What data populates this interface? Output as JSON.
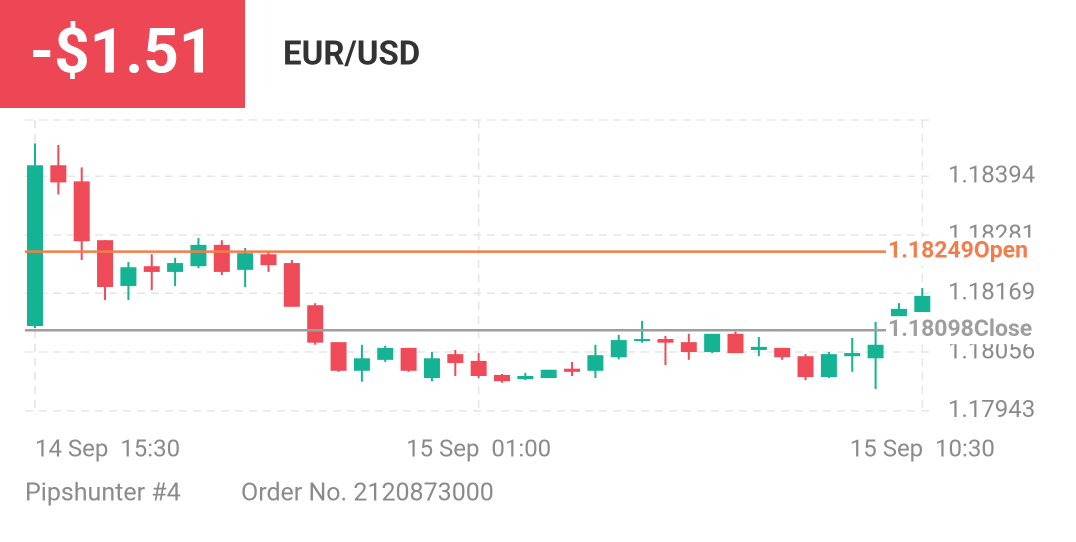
{
  "header": {
    "pnl": "-$1.51",
    "symbol": "EUR/USD"
  },
  "chart_data": {
    "type": "candlestick",
    "categories": [
      "14 Sep  15:30",
      null,
      null,
      null,
      null,
      null,
      null,
      null,
      null,
      null,
      null,
      null,
      null,
      null,
      null,
      null,
      null,
      null,
      null,
      "15 Sep  01:00",
      null,
      null,
      null,
      null,
      null,
      null,
      null,
      null,
      null,
      null,
      null,
      null,
      null,
      null,
      null,
      null,
      null,
      null,
      "15 Sep  10:30"
    ],
    "open": [
      1.18106,
      1.18415,
      1.18384,
      1.18271,
      1.18183,
      1.18221,
      1.1821,
      1.18221,
      1.18262,
      1.18214,
      1.18244,
      1.18227,
      1.18146,
      1.18075,
      1.1802,
      1.18041,
      1.18064,
      1.18006,
      1.18052,
      1.18039,
      1.18012,
      1.18004,
      1.18006,
      1.18024,
      1.1802,
      1.18046,
      1.18077,
      1.18081,
      1.18075,
      1.18056,
      1.18091,
      1.1806,
      1.18064,
      1.18048,
      1.18008,
      1.18048,
      1.18044,
      1.18123,
      1.18133
    ],
    "high": [
      1.18457,
      1.18454,
      1.18411,
      1.18271,
      1.18229,
      1.18244,
      1.18237,
      1.18275,
      1.18271,
      1.18256,
      1.18248,
      1.18233,
      1.1815,
      1.18075,
      1.1807,
      1.18068,
      1.18064,
      1.18056,
      1.1806,
      1.18054,
      1.18014,
      1.18016,
      1.18022,
      1.18037,
      1.1807,
      1.18089,
      1.18116,
      1.18087,
      1.18091,
      1.18091,
      1.18095,
      1.18085,
      1.18064,
      1.18052,
      1.18056,
      1.18083,
      1.18114,
      1.1815,
      1.18179
    ],
    "low": [
      1.18102,
      1.18359,
      1.18233,
      1.18156,
      1.18156,
      1.18175,
      1.18183,
      1.18217,
      1.18204,
      1.18181,
      1.1821,
      1.18143,
      1.1807,
      1.18018,
      1.17999,
      1.18037,
      1.18018,
      1.18,
      1.1801,
      1.18006,
      1.17997,
      1.18002,
      1.18006,
      1.1801,
      1.18006,
      1.18042,
      1.18074,
      1.18031,
      1.18041,
      1.18054,
      1.18054,
      1.18048,
      1.18041,
      1.18002,
      1.18006,
      1.18018,
      1.17985,
      1.18121,
      1.18133
    ],
    "close": [
      1.18415,
      1.18382,
      1.18269,
      1.18181,
      1.18219,
      1.1821,
      1.18227,
      1.18262,
      1.1821,
      1.18246,
      1.18223,
      1.18143,
      1.18074,
      1.1802,
      1.18044,
      1.18064,
      1.1802,
      1.18044,
      1.18035,
      1.1801,
      1.18,
      1.1801,
      1.18022,
      1.18018,
      1.1805,
      1.18079,
      1.18081,
      1.18074,
      1.18056,
      1.18091,
      1.18054,
      1.18066,
      1.18046,
      1.18008,
      1.18052,
      1.18054,
      1.1807,
      1.18139,
      1.18164
    ],
    "up_color": "#13b393",
    "down_color": "#ee4a58",
    "ylim": [
      1.17935,
      1.18502
    ],
    "yticks": [
      1.18394,
      1.18281,
      1.18169,
      1.18056,
      1.17943
    ],
    "grid": true,
    "lines": [
      {
        "name": "Open",
        "value": 1.18249,
        "color": "#f47c4a"
      },
      {
        "name": "Close",
        "value": 1.18098,
        "color": "#9e9e9e"
      }
    ]
  },
  "footer": {
    "account": "Pipshunter #4",
    "order": "Order No. 2120873000"
  }
}
